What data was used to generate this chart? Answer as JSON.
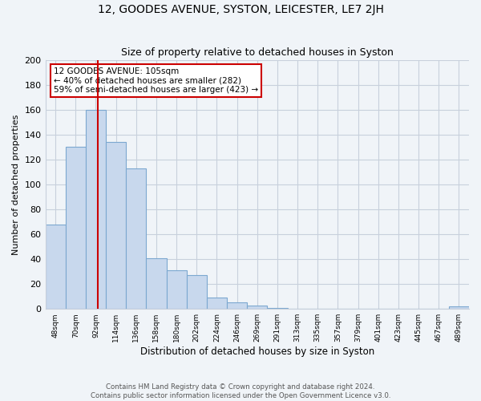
{
  "title1": "12, GOODES AVENUE, SYSTON, LEICESTER, LE7 2JH",
  "title2": "Size of property relative to detached houses in Syston",
  "xlabel": "Distribution of detached houses by size in Syston",
  "ylabel": "Number of detached properties",
  "bar_labels": [
    "48sqm",
    "70sqm",
    "92sqm",
    "114sqm",
    "136sqm",
    "158sqm",
    "180sqm",
    "202sqm",
    "224sqm",
    "246sqm",
    "269sqm",
    "291sqm",
    "313sqm",
    "335sqm",
    "357sqm",
    "379sqm",
    "401sqm",
    "423sqm",
    "445sqm",
    "467sqm",
    "489sqm"
  ],
  "bar_values": [
    68,
    130,
    160,
    134,
    113,
    41,
    31,
    27,
    9,
    5,
    3,
    1,
    0,
    0,
    0,
    0,
    0,
    0,
    0,
    0,
    2
  ],
  "bar_color": "#c8d8ed",
  "bar_edge_color": "#7ca8d0",
  "property_line_label": "12 GOODES AVENUE: 105sqm",
  "annotation_line1": "← 40% of detached houses are smaller (282)",
  "annotation_line2": "59% of semi-detached houses are larger (423) →",
  "annotation_box_color": "#ffffff",
  "annotation_box_edge": "#cc0000",
  "property_line_color": "#cc0000",
  "ylim": [
    0,
    200
  ],
  "yticks": [
    0,
    20,
    40,
    60,
    80,
    100,
    120,
    140,
    160,
    180,
    200
  ],
  "grid_color": "#c8d0dc",
  "background_color": "#f0f4f8",
  "footer1": "Contains HM Land Registry data © Crown copyright and database right 2024.",
  "footer2": "Contains public sector information licensed under the Open Government Licence v3.0."
}
